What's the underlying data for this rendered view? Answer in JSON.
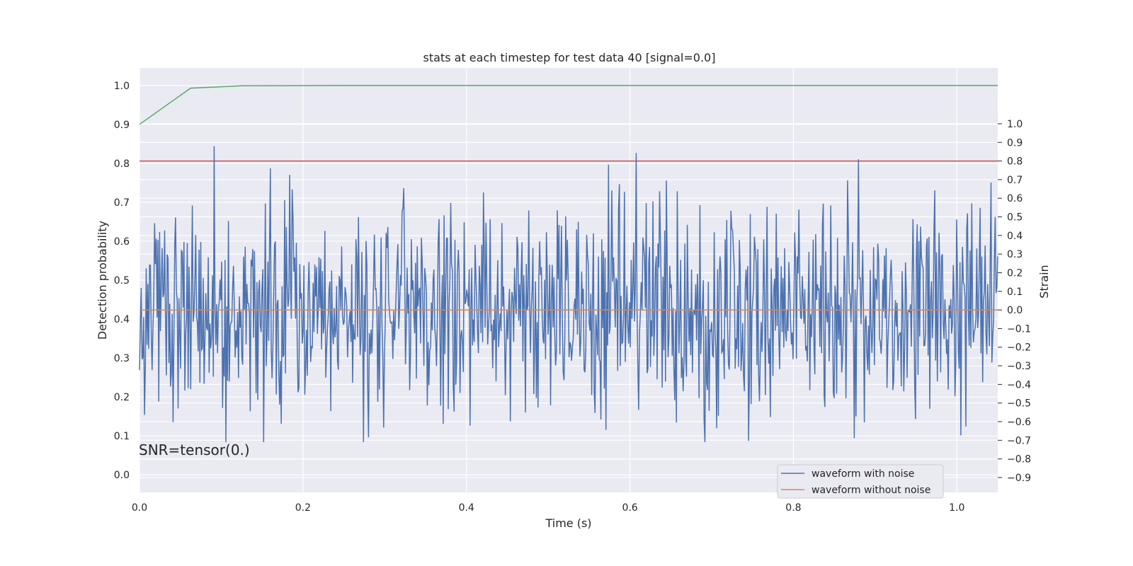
{
  "chart_data": {
    "type": "line",
    "title": "stats at each timestep for test data 40 [signal=0.0]",
    "xlabel": "Time (s)",
    "ylabel_left": "Detection probability",
    "ylabel_right": "Strain",
    "xlim": [
      0.0,
      1.05
    ],
    "ylim_left": [
      -0.045,
      1.045
    ],
    "ylim_right": [
      -0.98,
      1.3
    ],
    "x_ticks": [
      "0.0",
      "0.2",
      "0.4",
      "0.6",
      "0.8",
      "1.0"
    ],
    "x_tick_values": [
      0.0,
      0.2,
      0.4,
      0.6,
      0.8,
      1.0
    ],
    "y_left_ticks": [
      "0.0",
      "0.1",
      "0.2",
      "0.3",
      "0.4",
      "0.5",
      "0.6",
      "0.7",
      "0.8",
      "0.9",
      "1.0"
    ],
    "y_left_tick_values": [
      0.0,
      0.1,
      0.2,
      0.3,
      0.4,
      0.5,
      0.6,
      0.7,
      0.8,
      0.9,
      1.0
    ],
    "y_right_ticks": [
      "−0.9",
      "−0.8",
      "−0.7",
      "−0.6",
      "−0.5",
      "−0.4",
      "−0.3",
      "−0.2",
      "−0.1",
      "0.0",
      "0.1",
      "0.2",
      "0.3",
      "0.4",
      "0.5",
      "0.6",
      "0.7",
      "0.8",
      "0.9",
      "1.0"
    ],
    "y_right_tick_values": [
      -0.9,
      -0.8,
      -0.7,
      -0.6,
      -0.5,
      -0.4,
      -0.3,
      -0.2,
      -0.1,
      0.0,
      0.1,
      0.2,
      0.3,
      0.4,
      0.5,
      0.6,
      0.7,
      0.8,
      0.9,
      1.0
    ],
    "grid": true,
    "background": "#eaeaf2",
    "legend_position": "lower-right",
    "annotation": "SNR=tensor(0.)",
    "series": [
      {
        "name": "waveform with noise",
        "axis": "right",
        "color": "#4c72b0",
        "noise_amplitude": 0.3,
        "x_range": [
          0.0,
          1.05
        ],
        "num_points": 1024,
        "y_range": [
          -0.71,
          0.88
        ]
      },
      {
        "name": "waveform without noise",
        "axis": "right",
        "color": "#dd8452",
        "x": [
          0.0,
          1.05
        ],
        "y": [
          0.0,
          0.0
        ]
      },
      {
        "axis": "left",
        "color": "#55a868",
        "x": [
          0.0,
          0.0625,
          0.125,
          0.25,
          0.5,
          1.05
        ],
        "y": [
          0.9,
          0.993,
          0.999,
          1.0,
          1.0,
          1.0
        ]
      },
      {
        "axis": "right",
        "color": "#c44e52",
        "x": [
          0.0,
          1.05
        ],
        "y": [
          0.8,
          0.8
        ]
      }
    ]
  }
}
